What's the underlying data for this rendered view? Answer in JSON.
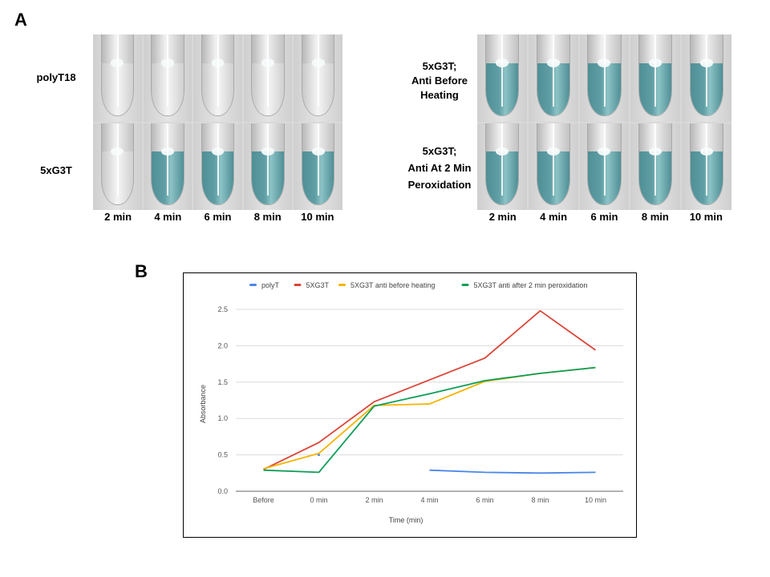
{
  "panel_a": {
    "letter": "A",
    "left_block": {
      "row_labels": [
        "polyT18",
        "5xG3T"
      ],
      "rows": [
        {
          "name": "polyT18",
          "color_state": [
            "clear",
            "clear",
            "clear",
            "clear",
            "clear"
          ]
        },
        {
          "name": "5xG3T",
          "color_state": [
            "clear",
            "blue",
            "blue",
            "blue",
            "blue"
          ]
        }
      ]
    },
    "right_block": {
      "row_labels": [
        [
          "5xG3T;",
          "Anti Before",
          "Heating"
        ],
        [
          "5xG3T;",
          "Anti At 2 Min",
          "Peroxidation"
        ]
      ],
      "rows": [
        {
          "name": "5xG3T anti before heating",
          "color_state": [
            "blue",
            "blue",
            "blue",
            "blue",
            "blue"
          ]
        },
        {
          "name": "5xG3T anti at 2 min peroxidation",
          "color_state": [
            "blue",
            "blue",
            "blue",
            "blue",
            "blue"
          ]
        }
      ]
    },
    "time_labels": [
      "2 min",
      "4 min",
      "6 min",
      "8 min",
      "10 min"
    ],
    "colors": {
      "clear_liquid": "#e6e6e6",
      "blue_liquid": "#4f8f96"
    }
  },
  "panel_b": {
    "letter": "B"
  },
  "chart_data": {
    "type": "line",
    "title": "",
    "xlabel": "Time (min)",
    "ylabel": "Absorbance",
    "categories": [
      "Before",
      "0 min",
      "2 min",
      "4 min",
      "6 min",
      "8 min",
      "10 min"
    ],
    "ylim": [
      0,
      2.5
    ],
    "yticks": [
      "0.0",
      "0.5",
      "1.0",
      "1.5",
      "2.0",
      "2.5"
    ],
    "ytick_values": [
      0,
      0.5,
      1.0,
      1.5,
      2.0,
      2.5
    ],
    "grid": true,
    "legend_position": "top",
    "series": [
      {
        "name": "polyT",
        "color": "#4a86e8",
        "values": [
          null,
          0.5,
          null,
          0.29,
          0.26,
          0.25,
          0.26
        ]
      },
      {
        "name": "5XG3T",
        "color": "#db4437",
        "values": [
          0.3,
          0.67,
          1.23,
          1.53,
          1.83,
          2.48,
          1.94
        ]
      },
      {
        "name": "5XG3T anti before heating",
        "color": "#f4b400",
        "values": [
          0.31,
          0.52,
          1.18,
          1.2,
          1.51,
          1.62,
          1.7
        ]
      },
      {
        "name": "5XG3T anti after 2 min peroxidation",
        "color": "#0f9d58",
        "values": [
          0.29,
          0.26,
          1.17,
          1.34,
          1.52,
          1.62,
          1.7
        ]
      }
    ]
  }
}
